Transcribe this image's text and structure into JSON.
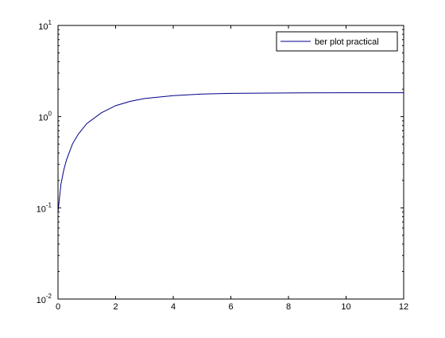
{
  "chart_data": {
    "type": "line",
    "title": "",
    "xlabel": "",
    "ylabel": "",
    "xlim": [
      0,
      12
    ],
    "ylim": [
      0.01,
      10
    ],
    "yscale": "log",
    "grid": false,
    "legend_location": "top-right",
    "x_ticks": [
      "0",
      "2",
      "4",
      "6",
      "8",
      "10",
      "12"
    ],
    "y_ticks": [
      {
        "base": "10",
        "exp": "-2"
      },
      {
        "base": "10",
        "exp": "-1"
      },
      {
        "base": "10",
        "exp": "0"
      },
      {
        "base": "10",
        "exp": "1"
      }
    ],
    "series": [
      {
        "name": "ber plot practical",
        "color": "#00008b",
        "x": [
          0,
          0.1,
          0.2,
          0.3,
          0.5,
          0.7,
          1.0,
          1.5,
          2.0,
          2.5,
          3.0,
          4.0,
          5.0,
          6.0,
          8.0,
          10.0,
          12.0
        ],
        "y": [
          0.09,
          0.18,
          0.26,
          0.34,
          0.5,
          0.64,
          0.84,
          1.1,
          1.32,
          1.47,
          1.58,
          1.7,
          1.77,
          1.8,
          1.82,
          1.83,
          1.83
        ]
      }
    ]
  }
}
